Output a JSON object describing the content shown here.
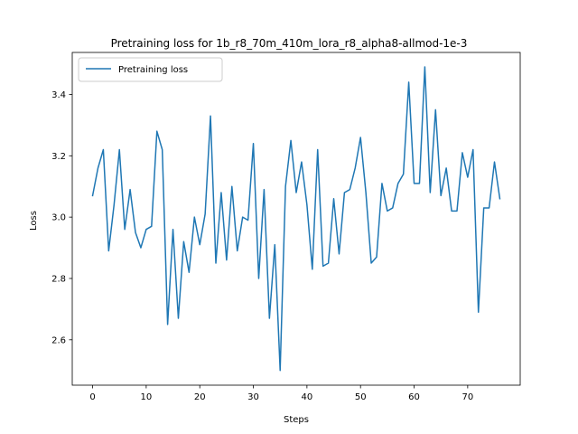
{
  "chart_data": {
    "type": "line",
    "title": "Pretraining loss for 1b_r8_70m_410m_lora_r8_alpha8-allmod-1e-3",
    "xlabel": "Steps",
    "ylabel": "Loss",
    "xlim": [
      -3.8,
      79.8
    ],
    "ylim": [
      2.452,
      3.537
    ],
    "xticks": [
      0,
      10,
      20,
      30,
      40,
      50,
      60,
      70
    ],
    "yticks": [
      2.6,
      2.8,
      3.0,
      3.2,
      3.4
    ],
    "xtick_labels": [
      "0",
      "10",
      "20",
      "30",
      "40",
      "50",
      "60",
      "70"
    ],
    "ytick_labels": [
      "2.6",
      "2.8",
      "3.0",
      "3.2",
      "3.4"
    ],
    "grid": false,
    "legend_position": "top-left",
    "series": [
      {
        "name": "Pretraining loss",
        "color": "#1f77b4",
        "x": [
          0,
          1,
          2,
          3,
          4,
          5,
          6,
          7,
          8,
          9,
          10,
          11,
          12,
          13,
          14,
          15,
          16,
          17,
          18,
          19,
          20,
          21,
          22,
          23,
          24,
          25,
          26,
          27,
          28,
          29,
          30,
          31,
          32,
          33,
          34,
          35,
          36,
          37,
          38,
          39,
          40,
          41,
          42,
          43,
          44,
          45,
          46,
          47,
          48,
          49,
          50,
          51,
          52,
          53,
          54,
          55,
          56,
          57,
          58,
          59,
          60,
          61,
          62,
          63,
          64,
          65,
          66,
          67,
          68,
          69,
          70,
          71,
          72,
          73,
          74,
          75,
          76
        ],
        "y": [
          3.07,
          3.16,
          3.22,
          2.89,
          3.04,
          3.22,
          2.96,
          3.09,
          2.95,
          2.9,
          2.96,
          2.97,
          3.28,
          3.22,
          2.65,
          2.96,
          2.67,
          2.92,
          2.82,
          3.0,
          2.91,
          3.01,
          3.33,
          2.85,
          3.08,
          2.86,
          3.1,
          2.89,
          3.0,
          2.99,
          3.24,
          2.8,
          3.09,
          2.67,
          2.91,
          2.5,
          3.1,
          3.25,
          3.08,
          3.18,
          3.04,
          2.83,
          3.22,
          2.84,
          2.85,
          3.06,
          2.88,
          3.08,
          3.09,
          3.16,
          3.26,
          3.08,
          2.85,
          2.87,
          3.11,
          3.02,
          3.03,
          3.11,
          3.14,
          3.44,
          3.11,
          3.11,
          3.49,
          3.08,
          3.35,
          3.07,
          3.16,
          3.02,
          3.02,
          3.21,
          3.13,
          3.22,
          2.69,
          3.03,
          3.03,
          3.18,
          3.06
        ]
      }
    ]
  }
}
